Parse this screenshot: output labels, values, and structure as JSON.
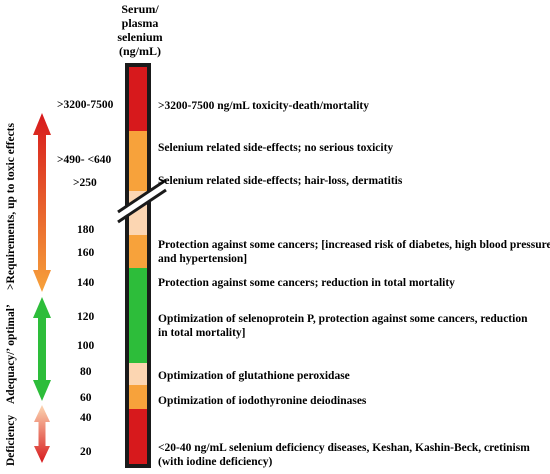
{
  "header": {
    "line1": "Serum/",
    "line2": "plasma",
    "line3": "selenium",
    "line4": "(ng/mL)"
  },
  "levels": {
    "t1": ">3200-7500",
    "t2": ">490- <640",
    "t3": ">250",
    "t4": "180",
    "t5": "160",
    "t6": "140",
    "t7": "120",
    "t8": "100",
    "t9": "80",
    "t10": "60",
    "t11": "40",
    "t12": "20"
  },
  "descriptions": {
    "d1": ">3200-7500 ng/mL toxicity-death/mortality",
    "d2": "Selenium related side-effects; no serious toxicity",
    "d3": "Selenium related side-effects; hair-loss, dermatitis",
    "d4a": "Protection against some cancers; [increased risk of diabetes, high blood pressure",
    "d4b": "and hypertension]",
    "d5": "Protection against some cancers; reduction in total mortality",
    "d6a": "Optimization of selenoprotein P, protection against some cancers, reduction",
    "d6b": "in total mortality]",
    "d7": "Optimization of glutathione peroxidase",
    "d8": "Optimization of iodothyronine deiodinases",
    "d9a": "<20-40 ng/mL selenium deficiency diseases, Keshan, Kashin-Beck, cretinism",
    "d9b": "(with iodine deficiency)"
  },
  "categories": {
    "toxic": ">Requirements, up to toxic effects",
    "adequacy": "Adequacy/’ optimal’",
    "deficiency": "Deficiency"
  },
  "colors": {
    "red": "#d7191c",
    "orange": "#f7a23b",
    "peach": "#fcd6b2",
    "green": "#2dbd3a",
    "black": "#1a1a1a"
  }
}
